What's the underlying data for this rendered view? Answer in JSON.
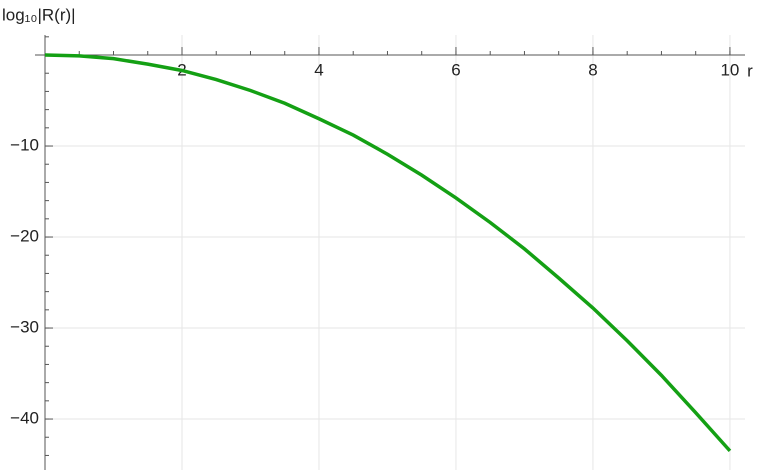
{
  "chart_data": {
    "type": "line",
    "x_label": "r",
    "y_label": "log₁₀|R(r)|",
    "x": [
      0,
      0.5,
      1,
      1.5,
      2,
      2.5,
      3,
      3.5,
      4,
      4.5,
      5,
      5.5,
      6,
      6.5,
      7,
      7.5,
      8,
      8.5,
      9,
      9.5,
      10
    ],
    "series": [
      {
        "color": "#14a014",
        "values": [
          0,
          -0.1,
          -0.4,
          -1.0,
          -1.7,
          -2.7,
          -3.9,
          -5.3,
          -7.0,
          -8.8,
          -10.9,
          -13.2,
          -15.7,
          -18.4,
          -21.3,
          -24.5,
          -27.8,
          -31.4,
          -35.2,
          -39.3,
          -43.5
        ]
      }
    ],
    "xlim": [
      0,
      10.22
    ],
    "ylim": [
      -45.6,
      2.2
    ],
    "xticks": [
      2,
      4,
      6,
      8,
      10
    ],
    "yticks": [
      {
        "value": -10,
        "label": "−10"
      },
      {
        "value": -20,
        "label": "−20"
      },
      {
        "value": -30,
        "label": "−30"
      },
      {
        "value": -40,
        "label": "−40"
      }
    ],
    "grid": true
  }
}
